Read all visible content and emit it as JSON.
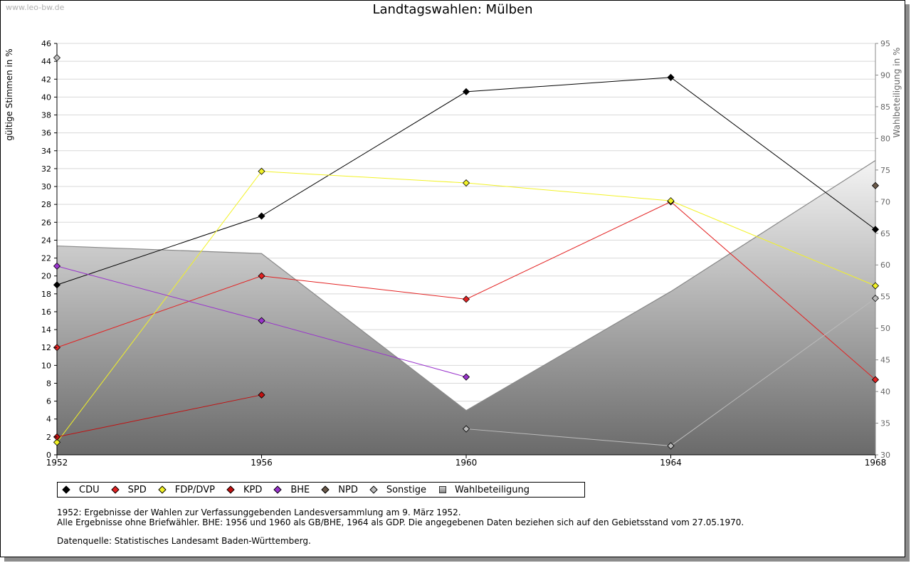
{
  "watermark": "www.leo-bw.de",
  "chart_data": {
    "type": "line",
    "title": "Landtagswahlen: Mülben",
    "ylabel": "gültige Stimmen in %",
    "y2label": "Wahlbeteiligung in %",
    "x": [
      1952,
      1956,
      1960,
      1964,
      1968
    ],
    "ylim": [
      0,
      46
    ],
    "y2lim": [
      30,
      95
    ],
    "yticks": [
      0,
      2,
      4,
      6,
      8,
      10,
      12,
      14,
      16,
      18,
      20,
      22,
      24,
      26,
      28,
      30,
      32,
      34,
      36,
      38,
      40,
      42,
      44,
      46
    ],
    "y2ticks": [
      30,
      35,
      40,
      45,
      50,
      55,
      60,
      65,
      70,
      75,
      80,
      85,
      90,
      95
    ],
    "grid": true,
    "legend_position": "bottom",
    "turnout": {
      "name": "Wahlbeteiligung",
      "values": [
        63.0,
        61.8,
        37.0,
        55.8,
        76.5
      ],
      "color": "#888888"
    },
    "series": [
      {
        "name": "CDU",
        "color": "#000000",
        "values": [
          19.0,
          26.7,
          40.6,
          42.2,
          25.2
        ]
      },
      {
        "name": "SPD",
        "color": "#e32222",
        "values": [
          12.0,
          20.0,
          17.4,
          28.3,
          8.4
        ]
      },
      {
        "name": "FDP/DVP",
        "color": "#f2f226",
        "values": [
          1.4,
          31.7,
          30.4,
          28.4,
          18.9
        ]
      },
      {
        "name": "KPD",
        "color": "#c21010",
        "values": [
          2.0,
          6.7,
          null,
          null,
          null
        ]
      },
      {
        "name": "BHE",
        "color": "#9933cc",
        "values": [
          21.1,
          15.0,
          8.7,
          null,
          null
        ]
      },
      {
        "name": "NPD",
        "color": "#6b5a4a",
        "values": [
          null,
          null,
          null,
          null,
          30.1
        ]
      },
      {
        "name": "Sonstige",
        "color": "#bbbbbb",
        "values": [
          44.4,
          null,
          2.9,
          1.0,
          17.5
        ]
      }
    ]
  },
  "legend": [
    {
      "label": "CDU",
      "color": "#000000"
    },
    {
      "label": "SPD",
      "color": "#e32222"
    },
    {
      "label": "FDP/DVP",
      "color": "#f2f226"
    },
    {
      "label": "KPD",
      "color": "#c21010"
    },
    {
      "label": "BHE",
      "color": "#9933cc"
    },
    {
      "label": "NPD",
      "color": "#6b5a4a"
    },
    {
      "label": "Sonstige",
      "color": "#bbbbbb"
    },
    {
      "label": "Wahlbeteiligung",
      "color": "#aaaaaa"
    }
  ],
  "notes": [
    "1952: Ergebnisse der Wahlen zur Verfassunggebenden Landesversammlung am 9. März 1952.",
    "Alle Ergebnisse ohne Briefwähler. BHE: 1956 und 1960 als GB/BHE, 1964 als GDP. Die angegebenen Daten beziehen sich auf den Gebietsstand vom 27.05.1970."
  ],
  "source": "Datenquelle: Statistisches Landesamt Baden-Württemberg."
}
